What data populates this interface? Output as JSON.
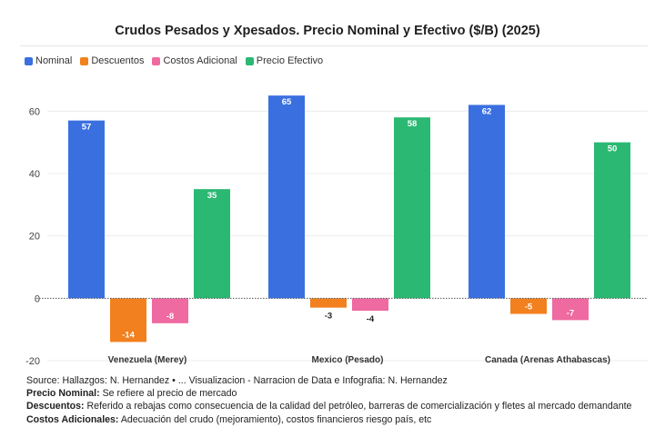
{
  "chart_data": {
    "type": "bar",
    "title": "Crudos Pesados y Xpesados. Precio Nominal y Efectivo ($/B) (2025)",
    "categories": [
      "Venezuela (Merey)",
      "Mexico (Pesado)",
      "Canada (Arenas Athabascas)"
    ],
    "series": [
      {
        "name": "Nominal",
        "color": "#3a6fe0",
        "values": [
          57,
          65,
          62
        ]
      },
      {
        "name": "Descuentos",
        "color": "#f2801f",
        "values": [
          -14,
          -3,
          -5
        ]
      },
      {
        "name": "Costos Adicional",
        "color": "#ee6aa0",
        "values": [
          -8,
          -4,
          -7
        ]
      },
      {
        "name": "Precio Efectivo",
        "color": "#2bb873",
        "values": [
          35,
          58,
          50
        ]
      }
    ],
    "ylim": [
      -20,
      70
    ],
    "yticks": [
      -20,
      0,
      20,
      40,
      60
    ],
    "xlabel": "",
    "ylabel": "",
    "grid": true,
    "legend_position": "top-left"
  },
  "footer": {
    "source": "Source: Hallazgos: N. Hernandez • ... Visualizacion - Narracion de Data e Infografia: N. Hernandez",
    "notes": [
      {
        "term": "Precio Nominal:",
        "text": "Se refiere al precio de mercado"
      },
      {
        "term": "Descuentos:",
        "text": "Referido a rebajas como consecuencia de la calidad del petróleo, barreras de comercialización y fletes al mercado demandante"
      },
      {
        "term": "Costos Adicionales:",
        "text": "Adecuación del crudo (mejoramiento), costos financieros riesgo país, etc"
      }
    ]
  }
}
